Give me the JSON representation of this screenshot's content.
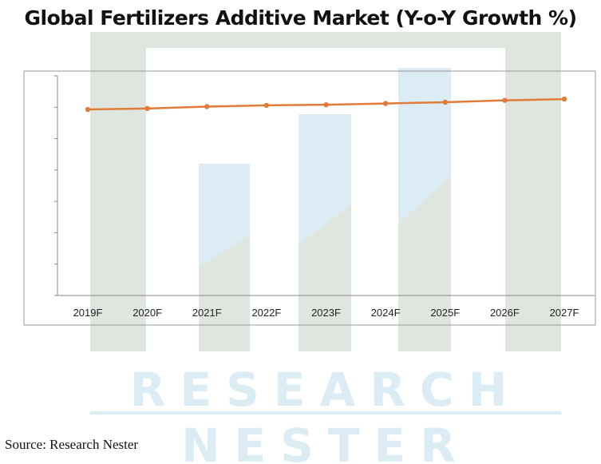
{
  "chart_data": {
    "type": "line",
    "title": "Global Fertilizers Additive Market (Y-o-Y Growth %)",
    "categories": [
      "2019F",
      "2020F",
      "2021F",
      "2022F",
      "2023F",
      "2024F",
      "2025F",
      "2026F",
      "2027F"
    ],
    "series": [
      {
        "values": [
          5.93,
          5.96,
          6.02,
          6.06,
          6.08,
          6.12,
          6.16,
          6.22,
          6.26
        ],
        "color": "#e07b39"
      }
    ],
    "xlabel": "",
    "ylabel": "",
    "ylim": [
      0,
      7
    ],
    "y_tick_labels_shown": false,
    "grid": false,
    "legend": "none"
  },
  "source": "Source: Research Nester",
  "watermark": {
    "line1": "RESEARCH",
    "line2": "NESTER"
  },
  "colors": {
    "line": "#e07b39",
    "axis": "#888888",
    "watermark_green": "#dfe6df",
    "watermark_blue": "#dcecf5"
  }
}
